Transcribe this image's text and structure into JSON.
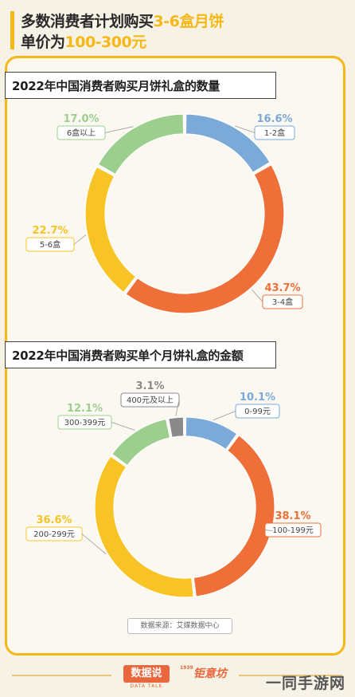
{
  "header": {
    "line1_prefix": "多数消费者计划购买",
    "line1_highlight": "3-6盒月饼",
    "line2_prefix": "单价为",
    "line2_highlight": "100-300元"
  },
  "colors": {
    "accent": "#f5b814",
    "blue": "#7ba9d8",
    "orange": "#ee7038",
    "yellow": "#f7c325",
    "green": "#9ccf8e",
    "gray": "#8a8a8a"
  },
  "chart_data": [
    {
      "type": "pie",
      "title": "2022年中国消费者购买月饼礼盒的数量",
      "unit": "%",
      "slices": [
        {
          "label": "1-2盒",
          "value": 16.6,
          "value_text": "16.6%",
          "color": "#7ba9d8"
        },
        {
          "label": "3-4盒",
          "value": 43.7,
          "value_text": "43.7%",
          "color": "#ee7038"
        },
        {
          "label": "5-6盒",
          "value": 22.7,
          "value_text": "22.7%",
          "color": "#f7c325"
        },
        {
          "label": "6盒以上",
          "value": 17.0,
          "value_text": "17.0%",
          "color": "#9ccf8e"
        }
      ]
    },
    {
      "type": "pie",
      "title": "2022年中国消费者购买单个月饼礼盒的金额",
      "unit": "%",
      "slices": [
        {
          "label": "0-99元",
          "value": 10.1,
          "value_text": "10.1%",
          "color": "#7ba9d8"
        },
        {
          "label": "100-199元",
          "value": 38.1,
          "value_text": "38.1%",
          "color": "#ee7038"
        },
        {
          "label": "200-299元",
          "value": 36.6,
          "value_text": "36.6%",
          "color": "#f7c325"
        },
        {
          "label": "300-399元",
          "value": 12.1,
          "value_text": "12.1%",
          "color": "#9ccf8e"
        },
        {
          "label": "400元及以上",
          "value": 3.1,
          "value_text": "3.1%",
          "color": "#8a8a8a"
        }
      ]
    }
  ],
  "source": "数据来源：艾媒数据中心",
  "footer": {
    "brand1": "数据说",
    "brand1_sub": "DATA TALK",
    "brand2_year": "1939",
    "brand2": "钜意坊",
    "watermark": "一同手游网"
  }
}
